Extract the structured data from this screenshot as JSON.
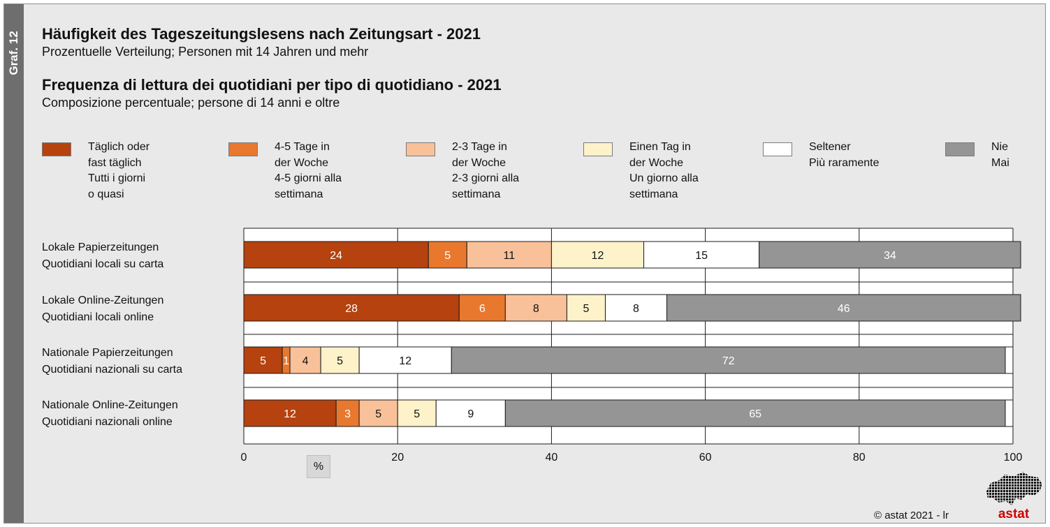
{
  "sidebar": {
    "tab_label": "Graf. 12"
  },
  "header": {
    "title_de": "Häufigkeit des Tageszeitungslesens nach Zeitungsart - 2021",
    "subtitle_de": "Prozentuelle Verteilung; Personen mit 14 Jahren und mehr",
    "title_it": "Frequenza di lettura dei quotidiani per tipo di quotidiano - 2021",
    "subtitle_it": "Composizione percentuale; persone di 14 anni e oltre"
  },
  "legend": [
    {
      "label": "Täglich oder\nfast täglich\nTutti i giorni\no quasi",
      "color": "#b5420f"
    },
    {
      "label": "4-5 Tage in\nder Woche\n4-5 giorni alla\nsettimana",
      "color": "#e8782e"
    },
    {
      "label": "2-3 Tage in\nder Woche\n2-3 giorni alla\nsettimana",
      "color": "#f9c199"
    },
    {
      "label": "Einen Tag in\nder Woche\nUn giorno alla\nsettimana",
      "color": "#fdf2c9"
    },
    {
      "label": "Seltener\nPiù raramente",
      "color": "#ffffff"
    },
    {
      "label": "Nie\nMai",
      "color": "#959595"
    }
  ],
  "categories": [
    {
      "line1": "Lokale Papierzeitungen",
      "line2": "Quotidiani locali su carta"
    },
    {
      "line1": "Lokale Online-Zeitungen",
      "line2": "Quotidiani locali online"
    },
    {
      "line1": "Nationale Papierzeitungen",
      "line2": "Quotidiani nazionali su carta"
    },
    {
      "line1": "Nationale Online-Zeitungen",
      "line2": "Quotidiani nazionali online"
    }
  ],
  "chart_data": {
    "type": "bar",
    "orientation": "horizontal",
    "stacked": true,
    "categories": [
      "Lokale Papierzeitungen",
      "Lokale Online-Zeitungen",
      "Nationale Papierzeitungen",
      "Nationale Online-Zeitungen"
    ],
    "series": [
      {
        "name": "Täglich oder fast täglich",
        "color": "#b5420f",
        "label_color": "#ffffff",
        "values": [
          24,
          28,
          5,
          12
        ]
      },
      {
        "name": "4-5 Tage in der Woche",
        "color": "#e8782e",
        "label_color": "#ffffff",
        "values": [
          5,
          6,
          1,
          3
        ]
      },
      {
        "name": "2-3 Tage in der Woche",
        "color": "#f9c199",
        "label_color": "#111111",
        "values": [
          11,
          8,
          4,
          5
        ]
      },
      {
        "name": "Einen Tag in der Woche",
        "color": "#fdf2c9",
        "label_color": "#111111",
        "values": [
          12,
          5,
          5,
          5
        ]
      },
      {
        "name": "Seltener",
        "color": "#ffffff",
        "label_color": "#111111",
        "values": [
          15,
          8,
          12,
          9
        ]
      },
      {
        "name": "Nie",
        "color": "#959595",
        "label_color": "#ffffff",
        "values": [
          34,
          46,
          72,
          65
        ]
      }
    ],
    "xlim": [
      0,
      100
    ],
    "xticks": [
      0,
      20,
      40,
      60,
      80,
      100
    ],
    "xlabel": "%"
  },
  "footer": {
    "copyright": "©  astat 2021 - lr",
    "logo_text": "astat"
  }
}
